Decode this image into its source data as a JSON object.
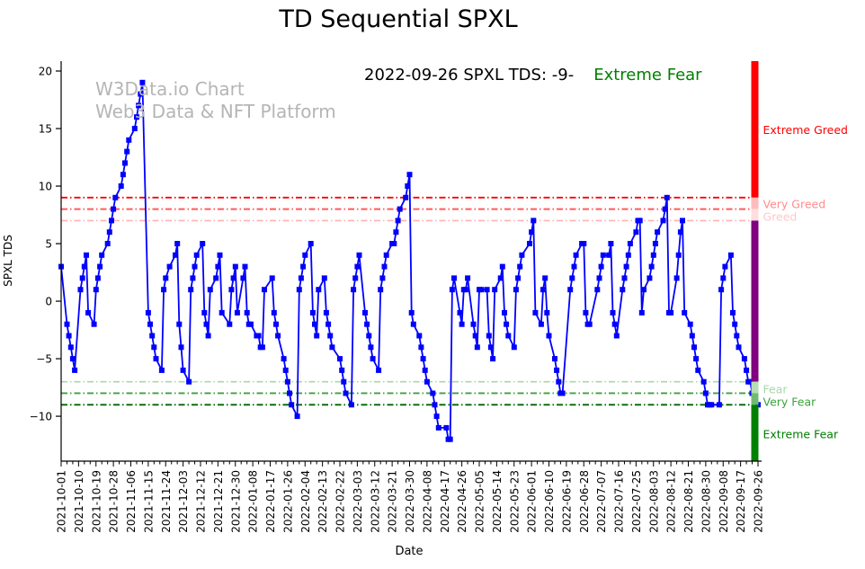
{
  "title": "TD Sequential SPXL",
  "watermark": {
    "line1": "W3Data.io Chart",
    "line2": "Web3 Data & NFT Platform"
  },
  "annotation": {
    "date_text": "2022-09-26 SPXL TDS: -9-",
    "status_text": "Extreme Fear",
    "status_color": "#008000"
  },
  "chart_data": {
    "type": "line",
    "title": "TD Sequential SPXL",
    "xlabel": "Date",
    "ylabel": "SPXL TDS",
    "x_start": "2021-10-01",
    "x_end": "2022-09-26",
    "ylim": [
      -13.9,
      20.86
    ],
    "grid": false,
    "line_color": "#0000ff",
    "marker": "square",
    "yticks": [
      [
        20,
        "20"
      ],
      [
        15,
        "15"
      ],
      [
        10,
        "10"
      ],
      [
        5,
        "5"
      ],
      [
        0,
        "0"
      ],
      [
        -5,
        "−5"
      ],
      [
        -10,
        "−10"
      ]
    ],
    "xtick_labels": [
      "2021-10-01",
      "2021-10-10",
      "2021-10-19",
      "2021-10-28",
      "2021-11-06",
      "2021-11-15",
      "2021-11-24",
      "2021-12-03",
      "2021-12-12",
      "2021-12-21",
      "2021-12-30",
      "2022-01-08",
      "2022-01-17",
      "2022-01-26",
      "2022-02-04",
      "2022-02-13",
      "2022-02-22",
      "2022-03-03",
      "2022-03-12",
      "2022-03-21",
      "2022-03-30",
      "2022-04-08",
      "2022-04-17",
      "2022-04-26",
      "2022-05-05",
      "2022-05-14",
      "2022-05-23",
      "2022-06-01",
      "2022-06-10",
      "2022-06-19",
      "2022-06-28",
      "2022-07-07",
      "2022-07-16",
      "2022-07-25",
      "2022-08-03",
      "2022-08-12",
      "2022-08-21",
      "2022-08-30",
      "2022-09-08",
      "2022-09-17",
      "2022-09-26"
    ],
    "xtick_major_interval_days": 9,
    "xtick_minor_interval_days": 3,
    "threshold_lines": [
      {
        "value": 9,
        "color": "#ff0000",
        "width": 1.9
      },
      {
        "value": 8,
        "color": "#ff5c5c",
        "width": 1.9
      },
      {
        "value": 7,
        "color": "#ffb3b3",
        "width": 1.6
      },
      {
        "value": -7,
        "color": "#a8d8a8",
        "width": 1.6
      },
      {
        "value": -8,
        "color": "#3da23d",
        "width": 1.9
      },
      {
        "value": -9,
        "color": "#006400",
        "width": 1.9
      }
    ],
    "zones": [
      {
        "label": "Extreme Greed",
        "from": 20.86,
        "to": 9,
        "color": "#ff0000",
        "label_color": "#ff0000",
        "label_v": 14.9
      },
      {
        "label": "Very Greed",
        "from": 9,
        "to": 8,
        "color": "#ffbcbc",
        "label_color": "#ff8c8c",
        "label_v": 8.45
      },
      {
        "label": "Greed",
        "from": 8,
        "to": 7,
        "color": "#ffdede",
        "label_color": "#ffc8c8",
        "label_v": 7.35
      },
      {
        "label": "",
        "from": 7,
        "to": -7,
        "color": "#800080",
        "label_color": "#800080",
        "label_v": 0
      },
      {
        "label": "Fear",
        "from": -7,
        "to": -8,
        "color": "#b6deb6",
        "label_color": "#a8d8a8",
        "label_v": -7.65
      },
      {
        "label": "Very Fear",
        "from": -8,
        "to": -9,
        "color": "#72ba72",
        "label_color": "#3da23d",
        "label_v": -8.75
      },
      {
        "label": "Extreme Fear",
        "from": -9,
        "to": -13.9,
        "color": "#008000",
        "label_color": "#007d00",
        "label_v": -11.55
      }
    ],
    "series": [
      {
        "name": "SPXL TDS",
        "points": [
          [
            "2021-10-01",
            3
          ],
          [
            "2021-10-04",
            -2
          ],
          [
            "2021-10-05",
            -3
          ],
          [
            "2021-10-06",
            -4
          ],
          [
            "2021-10-07",
            -5
          ],
          [
            "2021-10-08",
            -6
          ],
          [
            "2021-10-11",
            1
          ],
          [
            "2021-10-12",
            2
          ],
          [
            "2021-10-13",
            3
          ],
          [
            "2021-10-14",
            4
          ],
          [
            "2021-10-15",
            -1
          ],
          [
            "2021-10-18",
            -2
          ],
          [
            "2021-10-19",
            1
          ],
          [
            "2021-10-20",
            2
          ],
          [
            "2021-10-21",
            3
          ],
          [
            "2021-10-22",
            4
          ],
          [
            "2021-10-25",
            5
          ],
          [
            "2021-10-26",
            6
          ],
          [
            "2021-10-27",
            7
          ],
          [
            "2021-10-28",
            8
          ],
          [
            "2021-10-29",
            9
          ],
          [
            "2021-11-01",
            10
          ],
          [
            "2021-11-02",
            11
          ],
          [
            "2021-11-03",
            12
          ],
          [
            "2021-11-04",
            13
          ],
          [
            "2021-11-05",
            14
          ],
          [
            "2021-11-08",
            15
          ],
          [
            "2021-11-09",
            16
          ],
          [
            "2021-11-10",
            17
          ],
          [
            "2021-11-11",
            18
          ],
          [
            "2021-11-12",
            19
          ],
          [
            "2021-11-15",
            -1
          ],
          [
            "2021-11-16",
            -2
          ],
          [
            "2021-11-17",
            -3
          ],
          [
            "2021-11-18",
            -4
          ],
          [
            "2021-11-19",
            -5
          ],
          [
            "2021-11-22",
            -6
          ],
          [
            "2021-11-23",
            1
          ],
          [
            "2021-11-24",
            2
          ],
          [
            "2021-11-26",
            3
          ],
          [
            "2021-11-29",
            4
          ],
          [
            "2021-11-30",
            5
          ],
          [
            "2021-12-01",
            -2
          ],
          [
            "2021-12-02",
            -4
          ],
          [
            "2021-12-03",
            -6
          ],
          [
            "2021-12-06",
            -7
          ],
          [
            "2021-12-07",
            1
          ],
          [
            "2021-12-08",
            2
          ],
          [
            "2021-12-09",
            3
          ],
          [
            "2021-12-10",
            4
          ],
          [
            "2021-12-13",
            5
          ],
          [
            "2021-12-14",
            -1
          ],
          [
            "2021-12-15",
            -2
          ],
          [
            "2021-12-16",
            -3
          ],
          [
            "2021-12-17",
            1
          ],
          [
            "2021-12-20",
            2
          ],
          [
            "2021-12-21",
            3
          ],
          [
            "2021-12-22",
            4
          ],
          [
            "2021-12-23",
            -1
          ],
          [
            "2021-12-27",
            -2
          ],
          [
            "2021-12-28",
            1
          ],
          [
            "2021-12-29",
            2
          ],
          [
            "2021-12-30",
            3
          ],
          [
            "2021-12-31",
            -1
          ],
          [
            "2022-01-03",
            2
          ],
          [
            "2022-01-04",
            3
          ],
          [
            "2022-01-05",
            -1
          ],
          [
            "2022-01-06",
            -2
          ],
          [
            "2022-01-07",
            -2
          ],
          [
            "2022-01-10",
            -3
          ],
          [
            "2022-01-11",
            -3
          ],
          [
            "2022-01-12",
            -4
          ],
          [
            "2022-01-13",
            -4
          ],
          [
            "2022-01-14",
            1
          ],
          [
            "2022-01-18",
            2
          ],
          [
            "2022-01-19",
            -1
          ],
          [
            "2022-01-20",
            -2
          ],
          [
            "2022-01-21",
            -3
          ],
          [
            "2022-01-24",
            -5
          ],
          [
            "2022-01-25",
            -6
          ],
          [
            "2022-01-26",
            -7
          ],
          [
            "2022-01-27",
            -8
          ],
          [
            "2022-01-28",
            -9
          ],
          [
            "2022-01-31",
            -10
          ],
          [
            "2022-02-01",
            1
          ],
          [
            "2022-02-02",
            2
          ],
          [
            "2022-02-03",
            3
          ],
          [
            "2022-02-04",
            4
          ],
          [
            "2022-02-07",
            5
          ],
          [
            "2022-02-08",
            -1
          ],
          [
            "2022-02-09",
            -2
          ],
          [
            "2022-02-10",
            -3
          ],
          [
            "2022-02-11",
            1
          ],
          [
            "2022-02-14",
            2
          ],
          [
            "2022-02-15",
            -1
          ],
          [
            "2022-02-16",
            -2
          ],
          [
            "2022-02-17",
            -3
          ],
          [
            "2022-02-18",
            -4
          ],
          [
            "2022-02-22",
            -5
          ],
          [
            "2022-02-23",
            -6
          ],
          [
            "2022-02-24",
            -7
          ],
          [
            "2022-02-25",
            -8
          ],
          [
            "2022-02-28",
            -9
          ],
          [
            "2022-03-01",
            1
          ],
          [
            "2022-03-02",
            2
          ],
          [
            "2022-03-03",
            3
          ],
          [
            "2022-03-04",
            4
          ],
          [
            "2022-03-07",
            -1
          ],
          [
            "2022-03-08",
            -2
          ],
          [
            "2022-03-09",
            -3
          ],
          [
            "2022-03-10",
            -4
          ],
          [
            "2022-03-11",
            -5
          ],
          [
            "2022-03-14",
            -6
          ],
          [
            "2022-03-15",
            1
          ],
          [
            "2022-03-16",
            2
          ],
          [
            "2022-03-17",
            3
          ],
          [
            "2022-03-18",
            4
          ],
          [
            "2022-03-21",
            5
          ],
          [
            "2022-03-22",
            5
          ],
          [
            "2022-03-23",
            6
          ],
          [
            "2022-03-24",
            7
          ],
          [
            "2022-03-25",
            8
          ],
          [
            "2022-03-28",
            9
          ],
          [
            "2022-03-29",
            10
          ],
          [
            "2022-03-30",
            11
          ],
          [
            "2022-03-31",
            -1
          ],
          [
            "2022-04-01",
            -2
          ],
          [
            "2022-04-04",
            -3
          ],
          [
            "2022-04-05",
            -4
          ],
          [
            "2022-04-06",
            -5
          ],
          [
            "2022-04-07",
            -6
          ],
          [
            "2022-04-08",
            -7
          ],
          [
            "2022-04-11",
            -8
          ],
          [
            "2022-04-12",
            -9
          ],
          [
            "2022-04-13",
            -10
          ],
          [
            "2022-04-14",
            -11
          ],
          [
            "2022-04-18",
            -11
          ],
          [
            "2022-04-19",
            -12
          ],
          [
            "2022-04-20",
            -12
          ],
          [
            "2022-04-21",
            1
          ],
          [
            "2022-04-22",
            2
          ],
          [
            "2022-04-25",
            -1
          ],
          [
            "2022-04-26",
            -2
          ],
          [
            "2022-04-27",
            1
          ],
          [
            "2022-04-28",
            1
          ],
          [
            "2022-04-29",
            2
          ],
          [
            "2022-05-02",
            -2
          ],
          [
            "2022-05-03",
            -3
          ],
          [
            "2022-05-04",
            -4
          ],
          [
            "2022-05-05",
            1
          ],
          [
            "2022-05-06",
            1
          ],
          [
            "2022-05-09",
            1
          ],
          [
            "2022-05-10",
            -3
          ],
          [
            "2022-05-11",
            -4
          ],
          [
            "2022-05-12",
            -5
          ],
          [
            "2022-05-13",
            1
          ],
          [
            "2022-05-16",
            2
          ],
          [
            "2022-05-17",
            3
          ],
          [
            "2022-05-18",
            -1
          ],
          [
            "2022-05-19",
            -2
          ],
          [
            "2022-05-20",
            -3
          ],
          [
            "2022-05-23",
            -4
          ],
          [
            "2022-05-24",
            1
          ],
          [
            "2022-05-25",
            2
          ],
          [
            "2022-05-26",
            3
          ],
          [
            "2022-05-27",
            4
          ],
          [
            "2022-05-31",
            5
          ],
          [
            "2022-06-01",
            6
          ],
          [
            "2022-06-02",
            7
          ],
          [
            "2022-06-03",
            -1
          ],
          [
            "2022-06-06",
            -2
          ],
          [
            "2022-06-07",
            1
          ],
          [
            "2022-06-08",
            2
          ],
          [
            "2022-06-09",
            -1
          ],
          [
            "2022-06-10",
            -3
          ],
          [
            "2022-06-13",
            -5
          ],
          [
            "2022-06-14",
            -6
          ],
          [
            "2022-06-15",
            -7
          ],
          [
            "2022-06-16",
            -8
          ],
          [
            "2022-06-17",
            -8
          ],
          [
            "2022-06-21",
            1
          ],
          [
            "2022-06-22",
            2
          ],
          [
            "2022-06-23",
            3
          ],
          [
            "2022-06-24",
            4
          ],
          [
            "2022-06-27",
            5
          ],
          [
            "2022-06-28",
            5
          ],
          [
            "2022-06-29",
            -1
          ],
          [
            "2022-06-30",
            -2
          ],
          [
            "2022-07-01",
            -2
          ],
          [
            "2022-07-05",
            1
          ],
          [
            "2022-07-06",
            2
          ],
          [
            "2022-07-07",
            3
          ],
          [
            "2022-07-08",
            4
          ],
          [
            "2022-07-11",
            4
          ],
          [
            "2022-07-12",
            5
          ],
          [
            "2022-07-13",
            -1
          ],
          [
            "2022-07-14",
            -2
          ],
          [
            "2022-07-15",
            -3
          ],
          [
            "2022-07-18",
            1
          ],
          [
            "2022-07-19",
            2
          ],
          [
            "2022-07-20",
            3
          ],
          [
            "2022-07-21",
            4
          ],
          [
            "2022-07-22",
            5
          ],
          [
            "2022-07-25",
            6
          ],
          [
            "2022-07-26",
            7
          ],
          [
            "2022-07-27",
            7
          ],
          [
            "2022-07-28",
            -1
          ],
          [
            "2022-07-29",
            1
          ],
          [
            "2022-08-01",
            2
          ],
          [
            "2022-08-02",
            3
          ],
          [
            "2022-08-03",
            4
          ],
          [
            "2022-08-04",
            5
          ],
          [
            "2022-08-05",
            6
          ],
          [
            "2022-08-08",
            7
          ],
          [
            "2022-08-09",
            8
          ],
          [
            "2022-08-10",
            9
          ],
          [
            "2022-08-11",
            -1
          ],
          [
            "2022-08-12",
            -1
          ],
          [
            "2022-08-15",
            2
          ],
          [
            "2022-08-16",
            4
          ],
          [
            "2022-08-17",
            6
          ],
          [
            "2022-08-18",
            7
          ],
          [
            "2022-08-19",
            -1
          ],
          [
            "2022-08-22",
            -2
          ],
          [
            "2022-08-23",
            -3
          ],
          [
            "2022-08-24",
            -4
          ],
          [
            "2022-08-25",
            -5
          ],
          [
            "2022-08-26",
            -6
          ],
          [
            "2022-08-29",
            -7
          ],
          [
            "2022-08-30",
            -8
          ],
          [
            "2022-08-31",
            -9
          ],
          [
            "2022-09-01",
            -9
          ],
          [
            "2022-09-02",
            -9
          ],
          [
            "2022-09-06",
            -9
          ],
          [
            "2022-09-07",
            1
          ],
          [
            "2022-09-08",
            2
          ],
          [
            "2022-09-09",
            3
          ],
          [
            "2022-09-12",
            4
          ],
          [
            "2022-09-13",
            -1
          ],
          [
            "2022-09-14",
            -2
          ],
          [
            "2022-09-15",
            -3
          ],
          [
            "2022-09-16",
            -4
          ],
          [
            "2022-09-19",
            -5
          ],
          [
            "2022-09-20",
            -6
          ],
          [
            "2022-09-21",
            -7
          ],
          [
            "2022-09-22",
            -7
          ],
          [
            "2022-09-23",
            -8
          ],
          [
            "2022-09-26",
            -9
          ]
        ]
      }
    ]
  }
}
